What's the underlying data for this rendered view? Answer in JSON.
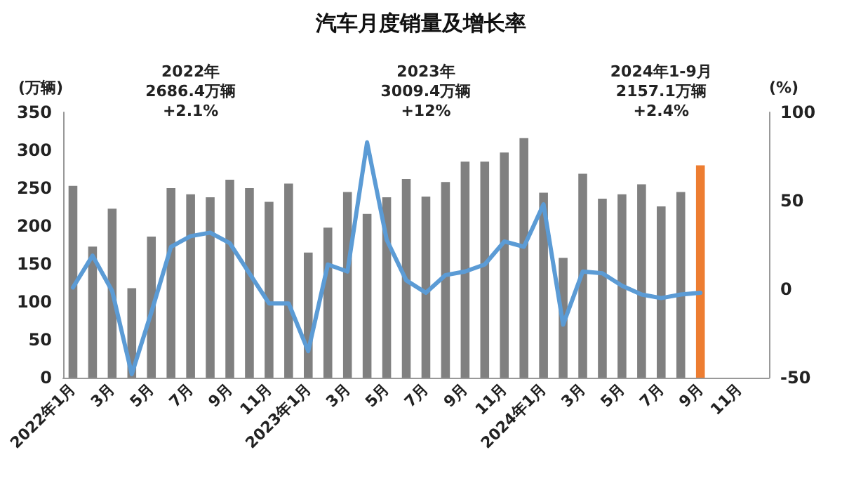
{
  "chart_data": {
    "type": "bar",
    "title": "汽车月度销量及增长率",
    "ylabel": "(万辆)",
    "y2label": "(%)",
    "categories": [
      "2022年1月",
      null,
      "3月",
      null,
      "5月",
      null,
      "7月",
      null,
      "9月",
      null,
      "11月",
      null,
      "2023年1月",
      null,
      "3月",
      null,
      "5月",
      null,
      "7月",
      null,
      "9月",
      null,
      "11月",
      null,
      "2024年1月",
      null,
      "3月",
      null,
      "5月",
      null,
      "7月",
      null,
      "9月",
      null,
      "11月",
      null
    ],
    "series": [
      {
        "color": "#808080",
        "colors": [
          "#808080",
          "#808080",
          "#808080",
          "#808080",
          "#808080",
          "#808080",
          "#808080",
          "#808080",
          "#808080",
          "#808080",
          "#808080",
          "#808080",
          "#808080",
          "#808080",
          "#808080",
          "#808080",
          "#808080",
          "#808080",
          "#808080",
          "#808080",
          "#808080",
          "#808080",
          "#808080",
          "#808080",
          "#808080",
          "#808080",
          "#808080",
          "#808080",
          "#808080",
          "#808080",
          "#808080",
          "#808080",
          "#ed7d31",
          null,
          null,
          null
        ],
        "values": [
          253,
          173,
          223,
          118,
          186,
          250,
          242,
          238,
          261,
          250,
          232,
          256,
          165,
          198,
          245,
          216,
          238,
          262,
          239,
          258,
          285,
          285,
          297,
          316,
          244,
          158,
          269,
          236,
          242,
          255,
          226,
          245,
          280,
          null,
          null,
          null
        ]
      },
      {
        "type": "line",
        "axis": "y2",
        "color": "#5b9bd5",
        "values": [
          1,
          19,
          -1,
          -48,
          -13,
          24,
          30,
          32,
          26,
          9,
          -8,
          -8,
          -35,
          14,
          10,
          83,
          28,
          5,
          -2,
          8,
          10,
          14,
          27,
          24,
          48,
          -20,
          10,
          9,
          2,
          -3,
          -5,
          -3,
          -2,
          null,
          null,
          null
        ]
      }
    ],
    "ylim": [
      0,
      350
    ],
    "yticks": [
      0,
      50,
      100,
      150,
      200,
      250,
      300,
      350
    ],
    "y2lim": [
      -50,
      100
    ],
    "y2ticks": [
      -50,
      0,
      50,
      100
    ],
    "grid": false,
    "marker": "none",
    "line_style": "solid",
    "annotations": [
      "2022年\n2686.4万辆\n+2.1%",
      "2023年\n3009.4万辆\n+12%",
      "2024年1-9月\n2157.1万辆\n+2.4%"
    ]
  }
}
